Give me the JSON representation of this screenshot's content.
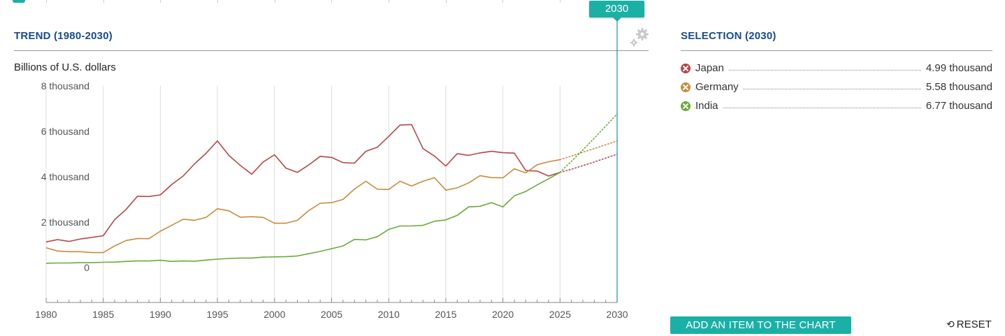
{
  "trend_panel": {
    "title": "TREND (1980-2030)",
    "unit": "Billions of U.S. dollars"
  },
  "selection_panel": {
    "title": "SELECTION (2030)"
  },
  "year_badge": "2030",
  "legend": [
    {
      "name": "Japan",
      "value": "4.99 thousand",
      "color": "#b5474a"
    },
    {
      "name": "Germany",
      "value": "5.58 thousand",
      "color": "#c98b3e"
    },
    {
      "name": "India",
      "value": "6.77 thousand",
      "color": "#6aaa3a"
    }
  ],
  "buttons": {
    "add_item": "ADD AN ITEM TO THE CHART",
    "reset": "RESET"
  },
  "icons": {
    "settings": "gear-icon",
    "reset": "reset-icon"
  },
  "chart_data": {
    "type": "line",
    "ylabel": "Billions of U.S. dollars",
    "xlim": [
      1980,
      2030
    ],
    "ylim": [
      0,
      8000
    ],
    "y_ticks": [
      {
        "value": 0,
        "label": "0"
      },
      {
        "value": 2000,
        "label": "2 thousand"
      },
      {
        "value": 4000,
        "label": "4 thousand"
      },
      {
        "value": 6000,
        "label": "6 thousand"
      },
      {
        "value": 8000,
        "label": "8 thousand"
      }
    ],
    "x_ticks": [
      1980,
      1985,
      1990,
      1995,
      2000,
      2005,
      2010,
      2015,
      2020,
      2025,
      2030
    ],
    "grid": true,
    "actual_end_year": 2025,
    "selected_year": 2030,
    "series": [
      {
        "name": "Japan",
        "color": "#b5474a",
        "x": [
          1980,
          1981,
          1982,
          1983,
          1984,
          1985,
          1986,
          1987,
          1988,
          1989,
          1990,
          1991,
          1992,
          1993,
          1994,
          1995,
          1996,
          1997,
          1998,
          1999,
          2000,
          2001,
          2002,
          2003,
          2004,
          2005,
          2006,
          2007,
          2008,
          2009,
          2010,
          2011,
          2012,
          2013,
          2014,
          2015,
          2016,
          2017,
          2018,
          2019,
          2020,
          2021,
          2022,
          2023,
          2024,
          2025,
          2026,
          2027,
          2028,
          2029,
          2030
        ],
        "y": [
          1130,
          1230,
          1150,
          1260,
          1330,
          1400,
          2110,
          2560,
          3140,
          3130,
          3200,
          3660,
          4030,
          4570,
          5030,
          5580,
          4940,
          4500,
          4110,
          4650,
          4970,
          4380,
          4190,
          4520,
          4900,
          4850,
          4620,
          4600,
          5120,
          5300,
          5780,
          6280,
          6300,
          5240,
          4910,
          4470,
          5020,
          4940,
          5050,
          5120,
          5060,
          5040,
          4270,
          4250,
          4030,
          4190,
          4330,
          4490,
          4650,
          4820,
          4990
        ]
      },
      {
        "name": "Germany",
        "color": "#c98b3e",
        "x": [
          1980,
          1981,
          1982,
          1983,
          1984,
          1985,
          1986,
          1987,
          1988,
          1989,
          1990,
          1991,
          1992,
          1993,
          1994,
          1995,
          1996,
          1997,
          1998,
          1999,
          2000,
          2001,
          2002,
          2003,
          2004,
          2005,
          2006,
          2007,
          2008,
          2009,
          2010,
          2011,
          2012,
          2013,
          2014,
          2015,
          2016,
          2017,
          2018,
          2019,
          2020,
          2021,
          2022,
          2023,
          2024,
          2025,
          2026,
          2027,
          2028,
          2029,
          2030
        ],
        "y": [
          870,
          730,
          700,
          700,
          660,
          660,
          950,
          1190,
          1280,
          1270,
          1600,
          1860,
          2130,
          2080,
          2210,
          2590,
          2500,
          2220,
          2240,
          2210,
          1950,
          1950,
          2080,
          2510,
          2830,
          2860,
          3000,
          3460,
          3800,
          3450,
          3440,
          3800,
          3590,
          3800,
          3960,
          3410,
          3510,
          3730,
          4050,
          3960,
          3950,
          4350,
          4170,
          4530,
          4660,
          4750,
          4910,
          5080,
          5240,
          5410,
          5580
        ]
      },
      {
        "name": "India",
        "color": "#6aaa3a",
        "x": [
          1980,
          1981,
          1982,
          1983,
          1984,
          1985,
          1986,
          1987,
          1988,
          1989,
          1990,
          1991,
          1992,
          1993,
          1994,
          1995,
          1996,
          1997,
          1998,
          1999,
          2000,
          2001,
          2002,
          2003,
          2004,
          2005,
          2006,
          2007,
          2008,
          2009,
          2010,
          2011,
          2012,
          2013,
          2014,
          2015,
          2016,
          2017,
          2018,
          2019,
          2020,
          2021,
          2022,
          2023,
          2024,
          2025,
          2026,
          2027,
          2028,
          2029,
          2030
        ],
        "y": [
          190,
          200,
          200,
          220,
          220,
          230,
          240,
          270,
          290,
          290,
          320,
          270,
          290,
          280,
          330,
          370,
          400,
          420,
          420,
          460,
          470,
          480,
          510,
          610,
          710,
          830,
          950,
          1240,
          1220,
          1360,
          1680,
          1830,
          1830,
          1860,
          2040,
          2100,
          2300,
          2670,
          2700,
          2860,
          2670,
          3160,
          3350,
          3640,
          3910,
          4190,
          4680,
          5180,
          5700,
          6230,
          6770
        ]
      }
    ]
  }
}
